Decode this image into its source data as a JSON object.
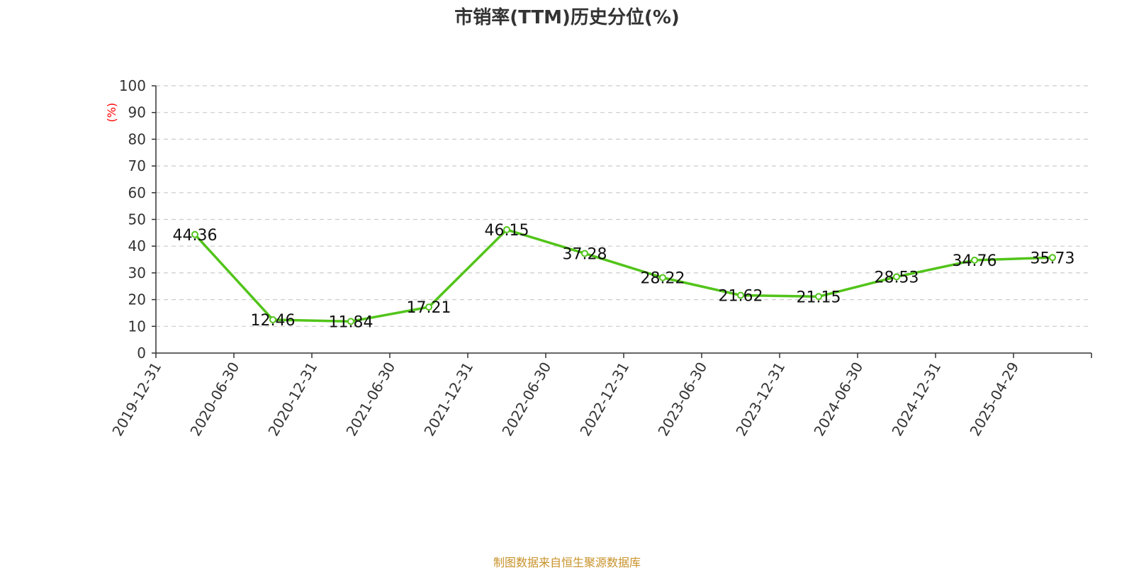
{
  "title": "市销率(TTM)历史分位(%)",
  "source": "制图数据来自恒生聚源数据库",
  "chart_data": {
    "type": "line",
    "title": "市销率(TTM)历史分位(%)",
    "xlabel": "",
    "ylabel": "(%)",
    "ylim": [
      0,
      100
    ],
    "yticks": [
      0,
      10,
      20,
      30,
      40,
      50,
      60,
      70,
      80,
      90,
      100
    ],
    "x": [
      "2019-12-31",
      "2020-06-30",
      "2020-12-31",
      "2021-06-30",
      "2021-12-31",
      "2022-06-30",
      "2022-12-31",
      "2023-06-30",
      "2023-12-31",
      "2024-06-30",
      "2024-12-31",
      "2025-04-29"
    ],
    "series": [
      {
        "values": [
          44.36,
          12.46,
          11.84,
          17.21,
          46.15,
          37.28,
          28.22,
          21.62,
          21.15,
          28.53,
          34.76,
          35.73
        ],
        "color": "#52c41a"
      }
    ],
    "grid": true,
    "grid_style": "dashed"
  }
}
